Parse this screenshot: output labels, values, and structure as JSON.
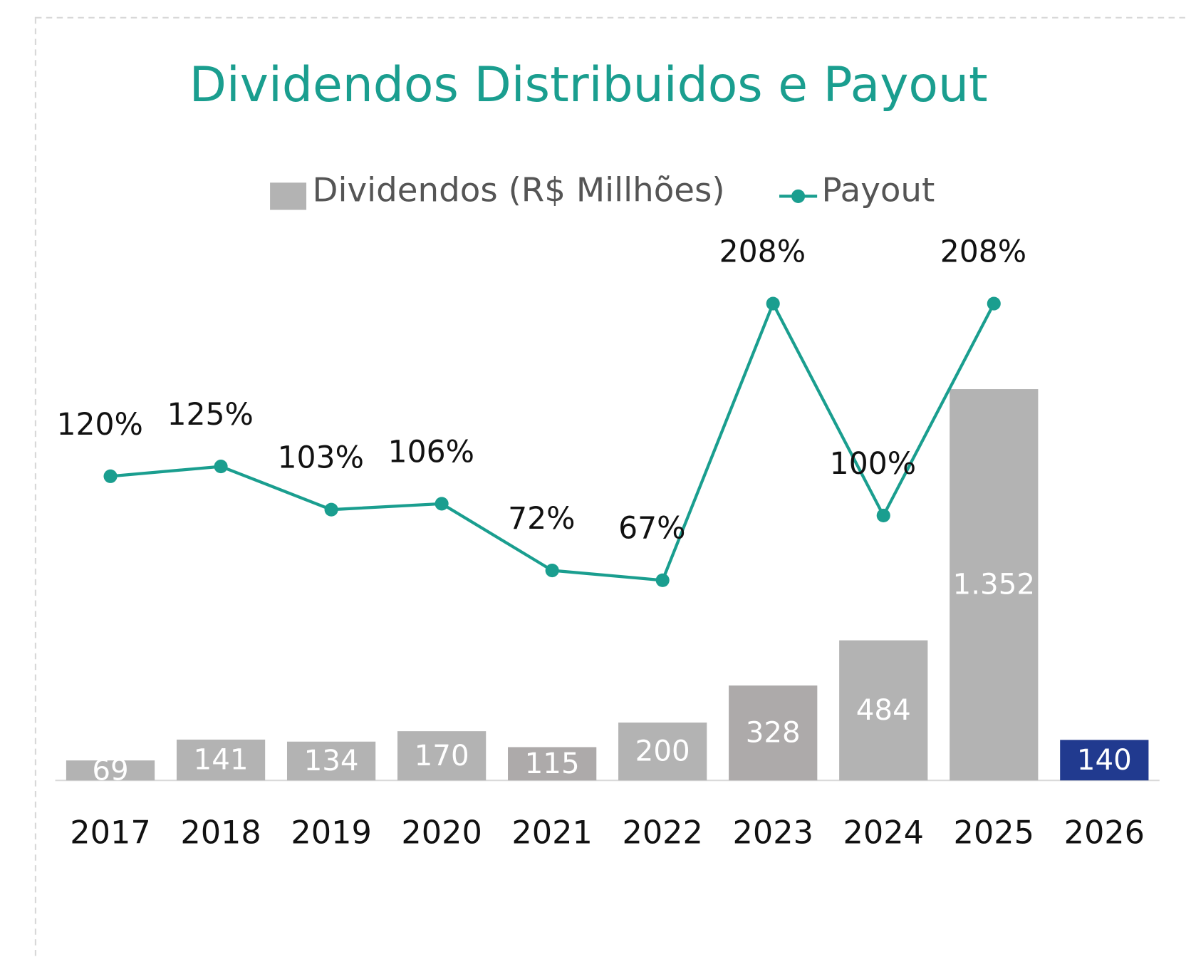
{
  "chart_data": {
    "type": "bar",
    "title": "Dividendos Distribuidos e Payout",
    "categories": [
      "2017",
      "2018",
      "2019",
      "2020",
      "2021",
      "2022",
      "2023",
      "2024",
      "2025",
      "2026"
    ],
    "series": [
      {
        "name": "Dividendos (R$ Millhões)",
        "type": "bar",
        "color": "#b3b3b3",
        "colors": [
          "#b3b3b3",
          "#b3b3b3",
          "#b3b3b3",
          "#b3b3b3",
          "#adaaaa",
          "#b3b3b3",
          "#adaaaa",
          "#b3b3b3",
          "#b3b3b3",
          "#213a8f"
        ],
        "values": [
          69,
          141,
          134,
          170,
          115,
          200,
          328,
          484,
          1352,
          140
        ],
        "value_labels": [
          "69",
          "141",
          "134",
          "170",
          "115",
          "200",
          "328",
          "484",
          "1.352",
          "140"
        ]
      },
      {
        "name": "Payout",
        "type": "line",
        "axis": "y2",
        "color": "#1a9e8f",
        "values": [
          120,
          125,
          103,
          106,
          72,
          67,
          208,
          100,
          208,
          null
        ],
        "value_labels": [
          "120%",
          "125%",
          "103%",
          "106%",
          "72%",
          "67%",
          "208%",
          "100%",
          "208%",
          null
        ]
      }
    ],
    "ylim": [
      0,
      2000
    ],
    "y2lim": [
      -35,
      260
    ],
    "legend": "top"
  }
}
